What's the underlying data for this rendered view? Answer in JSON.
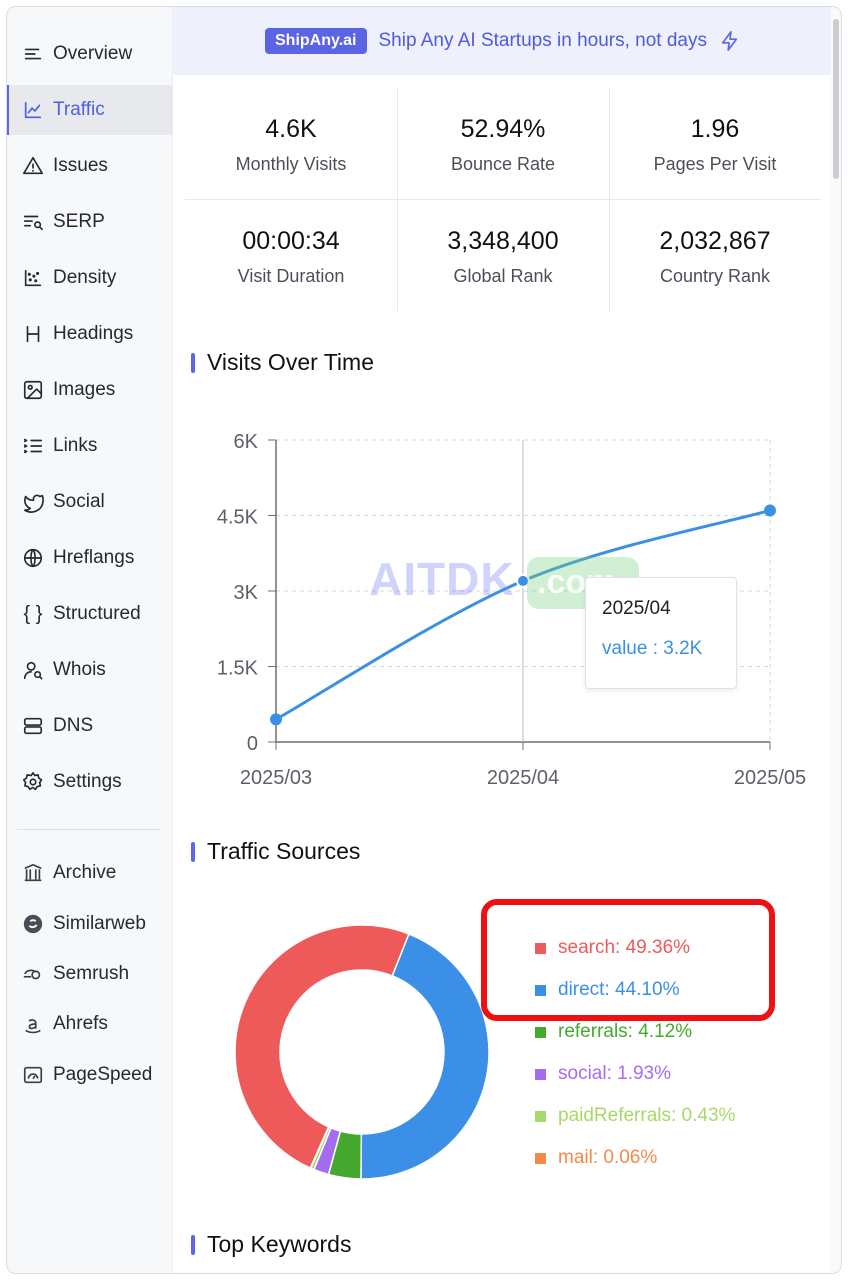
{
  "banner": {
    "badge": "ShipAny.ai",
    "text": "Ship Any AI Startups in hours, not days"
  },
  "sidebar": {
    "items": [
      {
        "label": "Overview",
        "icon": "list-icon"
      },
      {
        "label": "Traffic",
        "icon": "chart-line-icon",
        "active": true
      },
      {
        "label": "Issues",
        "icon": "warning-icon"
      },
      {
        "label": "SERP",
        "icon": "serp-icon"
      },
      {
        "label": "Density",
        "icon": "scatter-icon"
      },
      {
        "label": "Headings",
        "icon": "heading-icon"
      },
      {
        "label": "Images",
        "icon": "image-icon"
      },
      {
        "label": "Links",
        "icon": "list-ordered-icon"
      },
      {
        "label": "Social",
        "icon": "twitter-icon"
      },
      {
        "label": "Hreflangs",
        "icon": "globe-icon"
      },
      {
        "label": "Structured",
        "icon": "braces-icon"
      },
      {
        "label": "Whois",
        "icon": "user-search-icon"
      },
      {
        "label": "DNS",
        "icon": "server-icon"
      },
      {
        "label": "Settings",
        "icon": "gear-icon"
      }
    ],
    "external": [
      {
        "label": "Archive",
        "icon": "archive-icon"
      },
      {
        "label": "Similarweb",
        "icon": "similarweb-icon"
      },
      {
        "label": "Semrush",
        "icon": "semrush-icon"
      },
      {
        "label": "Ahrefs",
        "icon": "amazon-icon"
      },
      {
        "label": "PageSpeed",
        "icon": "gauge-icon"
      }
    ]
  },
  "stats": [
    {
      "value": "4.6K",
      "label": "Monthly Visits"
    },
    {
      "value": "52.94%",
      "label": "Bounce Rate"
    },
    {
      "value": "1.96",
      "label": "Pages Per Visit"
    },
    {
      "value": "00:00:34",
      "label": "Visit Duration"
    },
    {
      "value": "3,348,400",
      "label": "Global Rank"
    },
    {
      "value": "2,032,867",
      "label": "Country Rank"
    }
  ],
  "sections": {
    "visits": "Visits Over Time",
    "traffic_sources": "Traffic Sources",
    "top_keywords": "Top Keywords"
  },
  "watermark": {
    "text": "AITDK",
    "suffix": ".com"
  },
  "tooltip": {
    "date": "2025/04",
    "value": "value : 3.2K"
  },
  "chart_data": [
    {
      "type": "line",
      "title": "Visits Over Time",
      "x": [
        "2025/03",
        "2025/04",
        "2025/05"
      ],
      "series": [
        {
          "values": [
            450,
            3200,
            4600
          ]
        }
      ],
      "yticks": [
        "0",
        "1.5K",
        "3K",
        "4.5K",
        "6K"
      ],
      "ylim": [
        0,
        6000
      ],
      "grid": true,
      "color": "#3b8fe6"
    },
    {
      "type": "pie",
      "title": "Traffic Sources",
      "legend_position": "right",
      "slices": [
        {
          "name": "search",
          "label": "search: 49.36%",
          "value": 49.36,
          "color": "#ee5a5a"
        },
        {
          "name": "direct",
          "label": "direct: 44.10%",
          "value": 44.1,
          "color": "#3b8fe6"
        },
        {
          "name": "referrals",
          "label": "referrals: 4.12%",
          "value": 4.12,
          "color": "#46a82e"
        },
        {
          "name": "social",
          "label": "social: 1.93%",
          "value": 1.93,
          "color": "#a66cf0"
        },
        {
          "name": "paidReferrals",
          "label": "paidReferrals: 0.43%",
          "value": 0.43,
          "color": "#a6d96a"
        },
        {
          "name": "mail",
          "label": "mail: 0.06%",
          "value": 0.06,
          "color": "#f4894a"
        }
      ]
    }
  ]
}
